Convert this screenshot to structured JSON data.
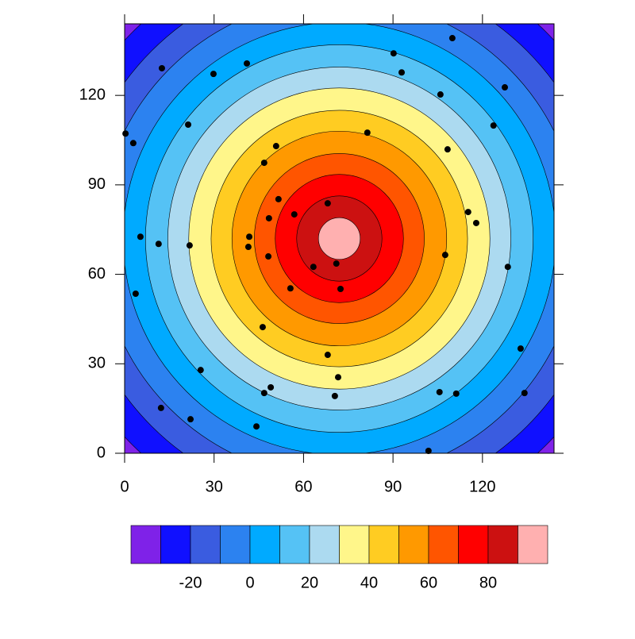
{
  "chart_data": {
    "type": "contour",
    "xlim": [
      0,
      144
    ],
    "ylim": [
      0,
      144
    ],
    "xticks": [
      0,
      30,
      60,
      90,
      120
    ],
    "yticks": [
      0,
      30,
      60,
      90,
      120
    ],
    "center": [
      72,
      72
    ],
    "levels": [
      -30,
      -20,
      -10,
      0,
      10,
      20,
      30,
      40,
      50,
      60,
      70,
      80,
      90
    ],
    "radii": [
      98,
      89,
      80.5,
      72.5,
      65,
      57.5,
      50.5,
      43,
      36,
      28.5,
      21.5,
      14.3,
      7
    ],
    "colors": [
      "#7f22e8",
      "#1010ff",
      "#3a5ce0",
      "#2c82f0",
      "#00aaff",
      "#55c2f5",
      "#acdaf0",
      "#fff68a",
      "#ffcc22",
      "#ff9900",
      "#ff5500",
      "#ff0000",
      "#cc1111",
      "#ffb0b0"
    ],
    "colorbar_ticks": [
      -20,
      0,
      20,
      40,
      60,
      80
    ],
    "points": {
      "x": [
        109.9,
        90.2,
        92.9,
        41,
        29.8,
        12.5,
        127.5,
        105.9,
        123.7,
        21.3,
        0.3,
        2.9,
        81.4,
        108.3,
        50.8,
        46.8,
        51.6,
        68.1,
        56.9,
        48.4,
        115.2,
        117.9,
        5.3,
        41.8,
        41.5,
        11.4,
        21.8,
        48.2,
        107.5,
        128.5,
        71,
        63.3,
        72.4,
        55.6,
        3.7,
        46.3,
        132.8,
        68.1,
        25.5,
        71.6,
        49,
        46.8,
        105.6,
        111.2,
        134.1,
        70.5,
        12.2,
        22.1,
        44.2,
        101.9
      ],
      "y": [
        139.2,
        134.1,
        127.7,
        130.7,
        127.2,
        129.1,
        122.7,
        120.3,
        109.9,
        110.2,
        107.2,
        104,
        107.5,
        101.9,
        103,
        97.4,
        85.2,
        83.8,
        80.1,
        78.8,
        80.9,
        77.2,
        72.6,
        72.6,
        69.2,
        70.2,
        69.7,
        66,
        66.5,
        62.5,
        63.6,
        62.5,
        55.1,
        55.3,
        53.5,
        42.3,
        35.1,
        33,
        27.9,
        25.5,
        22.1,
        20.2,
        20.5,
        20,
        20.2,
        19.2,
        15.2,
        11.4,
        9,
        0.8
      ]
    }
  }
}
